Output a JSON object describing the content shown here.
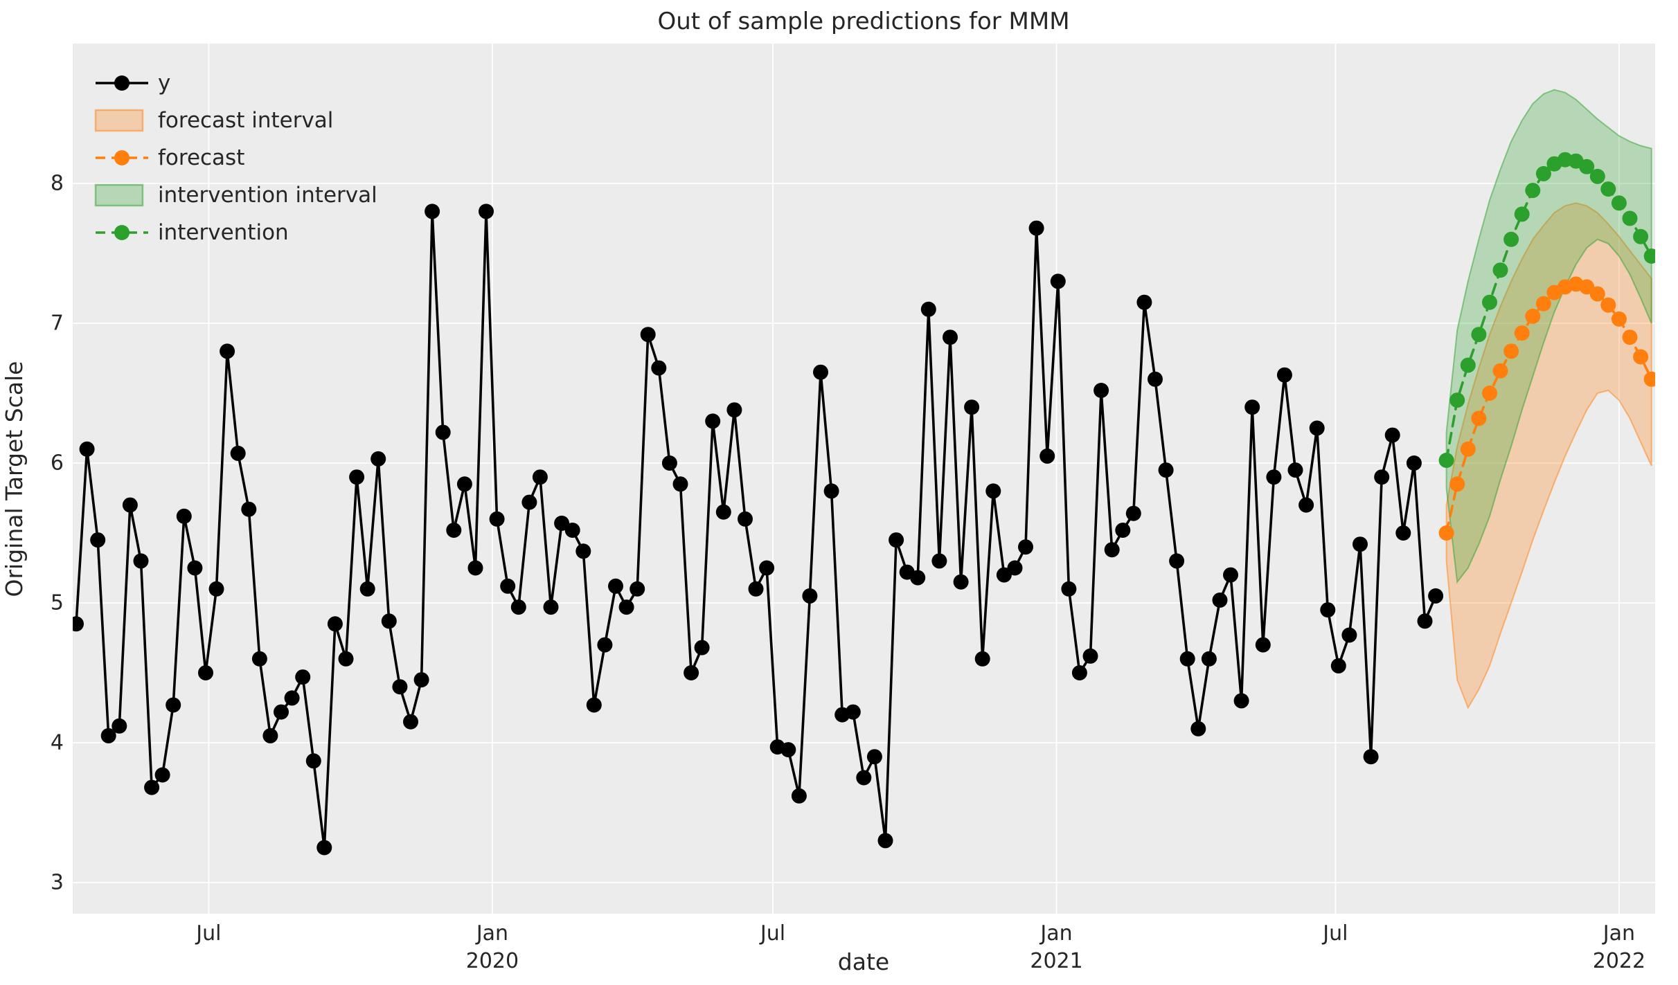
{
  "chart_data": {
    "type": "line",
    "title": "Out of sample predictions for MMM",
    "xlabel": "date",
    "ylabel": "Original Target Scale",
    "ylim": [
      2.78,
      9.0
    ],
    "yticks": [
      3,
      4,
      5,
      6,
      7,
      8
    ],
    "xticks": [
      {
        "date": "2019-07-01",
        "label": "Jul",
        "year": ""
      },
      {
        "date": "2020-01-01",
        "label": "Jan",
        "year": "2020"
      },
      {
        "date": "2020-07-01",
        "label": "Jul",
        "year": ""
      },
      {
        "date": "2021-01-01",
        "label": "Jan",
        "year": "2021"
      },
      {
        "date": "2021-07-01",
        "label": "Jul",
        "year": ""
      },
      {
        "date": "2022-01-01",
        "label": "Jan",
        "year": "2022"
      }
    ],
    "x_epoch": "2019-04-06",
    "grid": "on",
    "colors": {
      "background": "#ececec",
      "gridline": "#ffffff",
      "text": "#262626",
      "y_series": "#000000",
      "forecast": "#ff7f0e",
      "intervention": "#2ca02c"
    },
    "legend": {
      "position": "upper-left",
      "items": [
        {
          "label": "y",
          "swatch": "line",
          "color": "#000000",
          "dash": false
        },
        {
          "label": "forecast interval",
          "swatch": "patch",
          "color": "#ff7f0e",
          "dash": false
        },
        {
          "label": "forecast",
          "swatch": "line",
          "color": "#ff7f0e",
          "dash": true
        },
        {
          "label": "intervention interval",
          "swatch": "patch",
          "color": "#2ca02c",
          "dash": false
        },
        {
          "label": "intervention",
          "swatch": "line",
          "color": "#2ca02c",
          "dash": true
        }
      ]
    },
    "series": [
      {
        "name": "y",
        "kind": "line-marker",
        "color": "#000000",
        "linestyle": "solid",
        "start_date": "2019-04-06",
        "interval_days": 7,
        "values": [
          4.85,
          6.1,
          5.45,
          4.05,
          4.12,
          5.7,
          5.3,
          3.68,
          3.77,
          4.27,
          5.62,
          5.25,
          4.5,
          5.1,
          6.8,
          6.07,
          5.67,
          4.6,
          4.05,
          4.22,
          4.32,
          4.47,
          3.87,
          3.25,
          4.85,
          4.6,
          5.9,
          5.1,
          6.03,
          4.87,
          4.4,
          4.15,
          4.45,
          7.8,
          6.22,
          5.52,
          5.85,
          5.25,
          7.8,
          5.6,
          5.12,
          4.97,
          5.72,
          5.9,
          4.97,
          5.57,
          5.52,
          5.37,
          4.27,
          4.7,
          5.12,
          4.97,
          5.1,
          6.92,
          6.68,
          6.0,
          5.85,
          4.5,
          4.68,
          6.3,
          5.65,
          6.38,
          5.6,
          5.1,
          5.25,
          3.97,
          3.95,
          3.62,
          5.05,
          6.65,
          5.8,
          4.2,
          4.22,
          3.75,
          3.9,
          3.3,
          5.45,
          5.22,
          5.18,
          7.1,
          5.3,
          6.9,
          5.15,
          6.4,
          4.6,
          5.8,
          5.2,
          5.25,
          5.4,
          7.68,
          6.05,
          7.3,
          5.1,
          4.5,
          4.62,
          6.52,
          5.38,
          5.52,
          5.64,
          7.15,
          6.6,
          5.95,
          5.3,
          4.6,
          4.1,
          4.6,
          5.02,
          5.2,
          4.3,
          6.4,
          4.7,
          5.9,
          6.63,
          5.95,
          5.7,
          6.25,
          4.95,
          4.55,
          4.77,
          5.42,
          3.9,
          5.9,
          6.2,
          5.5,
          6.0,
          4.87,
          5.05
        ]
      },
      {
        "name": "forecast interval",
        "kind": "band",
        "color": "#ff7f0e",
        "start_date": "2021-09-11",
        "interval_days": 7,
        "lower": [
          5.3,
          4.45,
          4.25,
          4.38,
          4.55,
          4.78,
          5.0,
          5.22,
          5.45,
          5.66,
          5.86,
          6.05,
          6.22,
          6.38,
          6.5,
          6.52,
          6.45,
          6.32,
          6.15,
          5.98
        ],
        "upper": [
          5.7,
          6.12,
          6.42,
          6.68,
          6.92,
          7.12,
          7.3,
          7.46,
          7.6,
          7.7,
          7.79,
          7.84,
          7.86,
          7.84,
          7.79,
          7.71,
          7.62,
          7.52,
          7.42,
          7.32
        ]
      },
      {
        "name": "forecast",
        "kind": "line-marker",
        "color": "#ff7f0e",
        "linestyle": "dashed",
        "start_date": "2021-09-11",
        "interval_days": 7,
        "values": [
          5.5,
          5.85,
          6.1,
          6.32,
          6.5,
          6.66,
          6.8,
          6.93,
          7.05,
          7.14,
          7.22,
          7.26,
          7.28,
          7.26,
          7.21,
          7.13,
          7.03,
          6.9,
          6.76,
          6.6
        ]
      },
      {
        "name": "intervention interval",
        "kind": "band",
        "color": "#2ca02c",
        "start_date": "2021-09-11",
        "interval_days": 7,
        "lower": [
          5.82,
          5.15,
          5.25,
          5.42,
          5.62,
          5.88,
          6.12,
          6.38,
          6.62,
          6.86,
          7.08,
          7.26,
          7.42,
          7.54,
          7.6,
          7.57,
          7.48,
          7.35,
          7.18,
          7.0
        ],
        "upper": [
          6.22,
          6.95,
          7.3,
          7.6,
          7.88,
          8.1,
          8.3,
          8.45,
          8.57,
          8.64,
          8.67,
          8.65,
          8.6,
          8.53,
          8.46,
          8.4,
          8.34,
          8.3,
          8.27,
          8.25
        ]
      },
      {
        "name": "intervention",
        "kind": "line-marker",
        "color": "#2ca02c",
        "linestyle": "dashed",
        "start_date": "2021-09-11",
        "interval_days": 7,
        "values": [
          6.02,
          6.45,
          6.7,
          6.92,
          7.15,
          7.38,
          7.6,
          7.78,
          7.95,
          8.07,
          8.14,
          8.17,
          8.16,
          8.12,
          8.05,
          7.96,
          7.86,
          7.75,
          7.62,
          7.48
        ]
      }
    ]
  }
}
